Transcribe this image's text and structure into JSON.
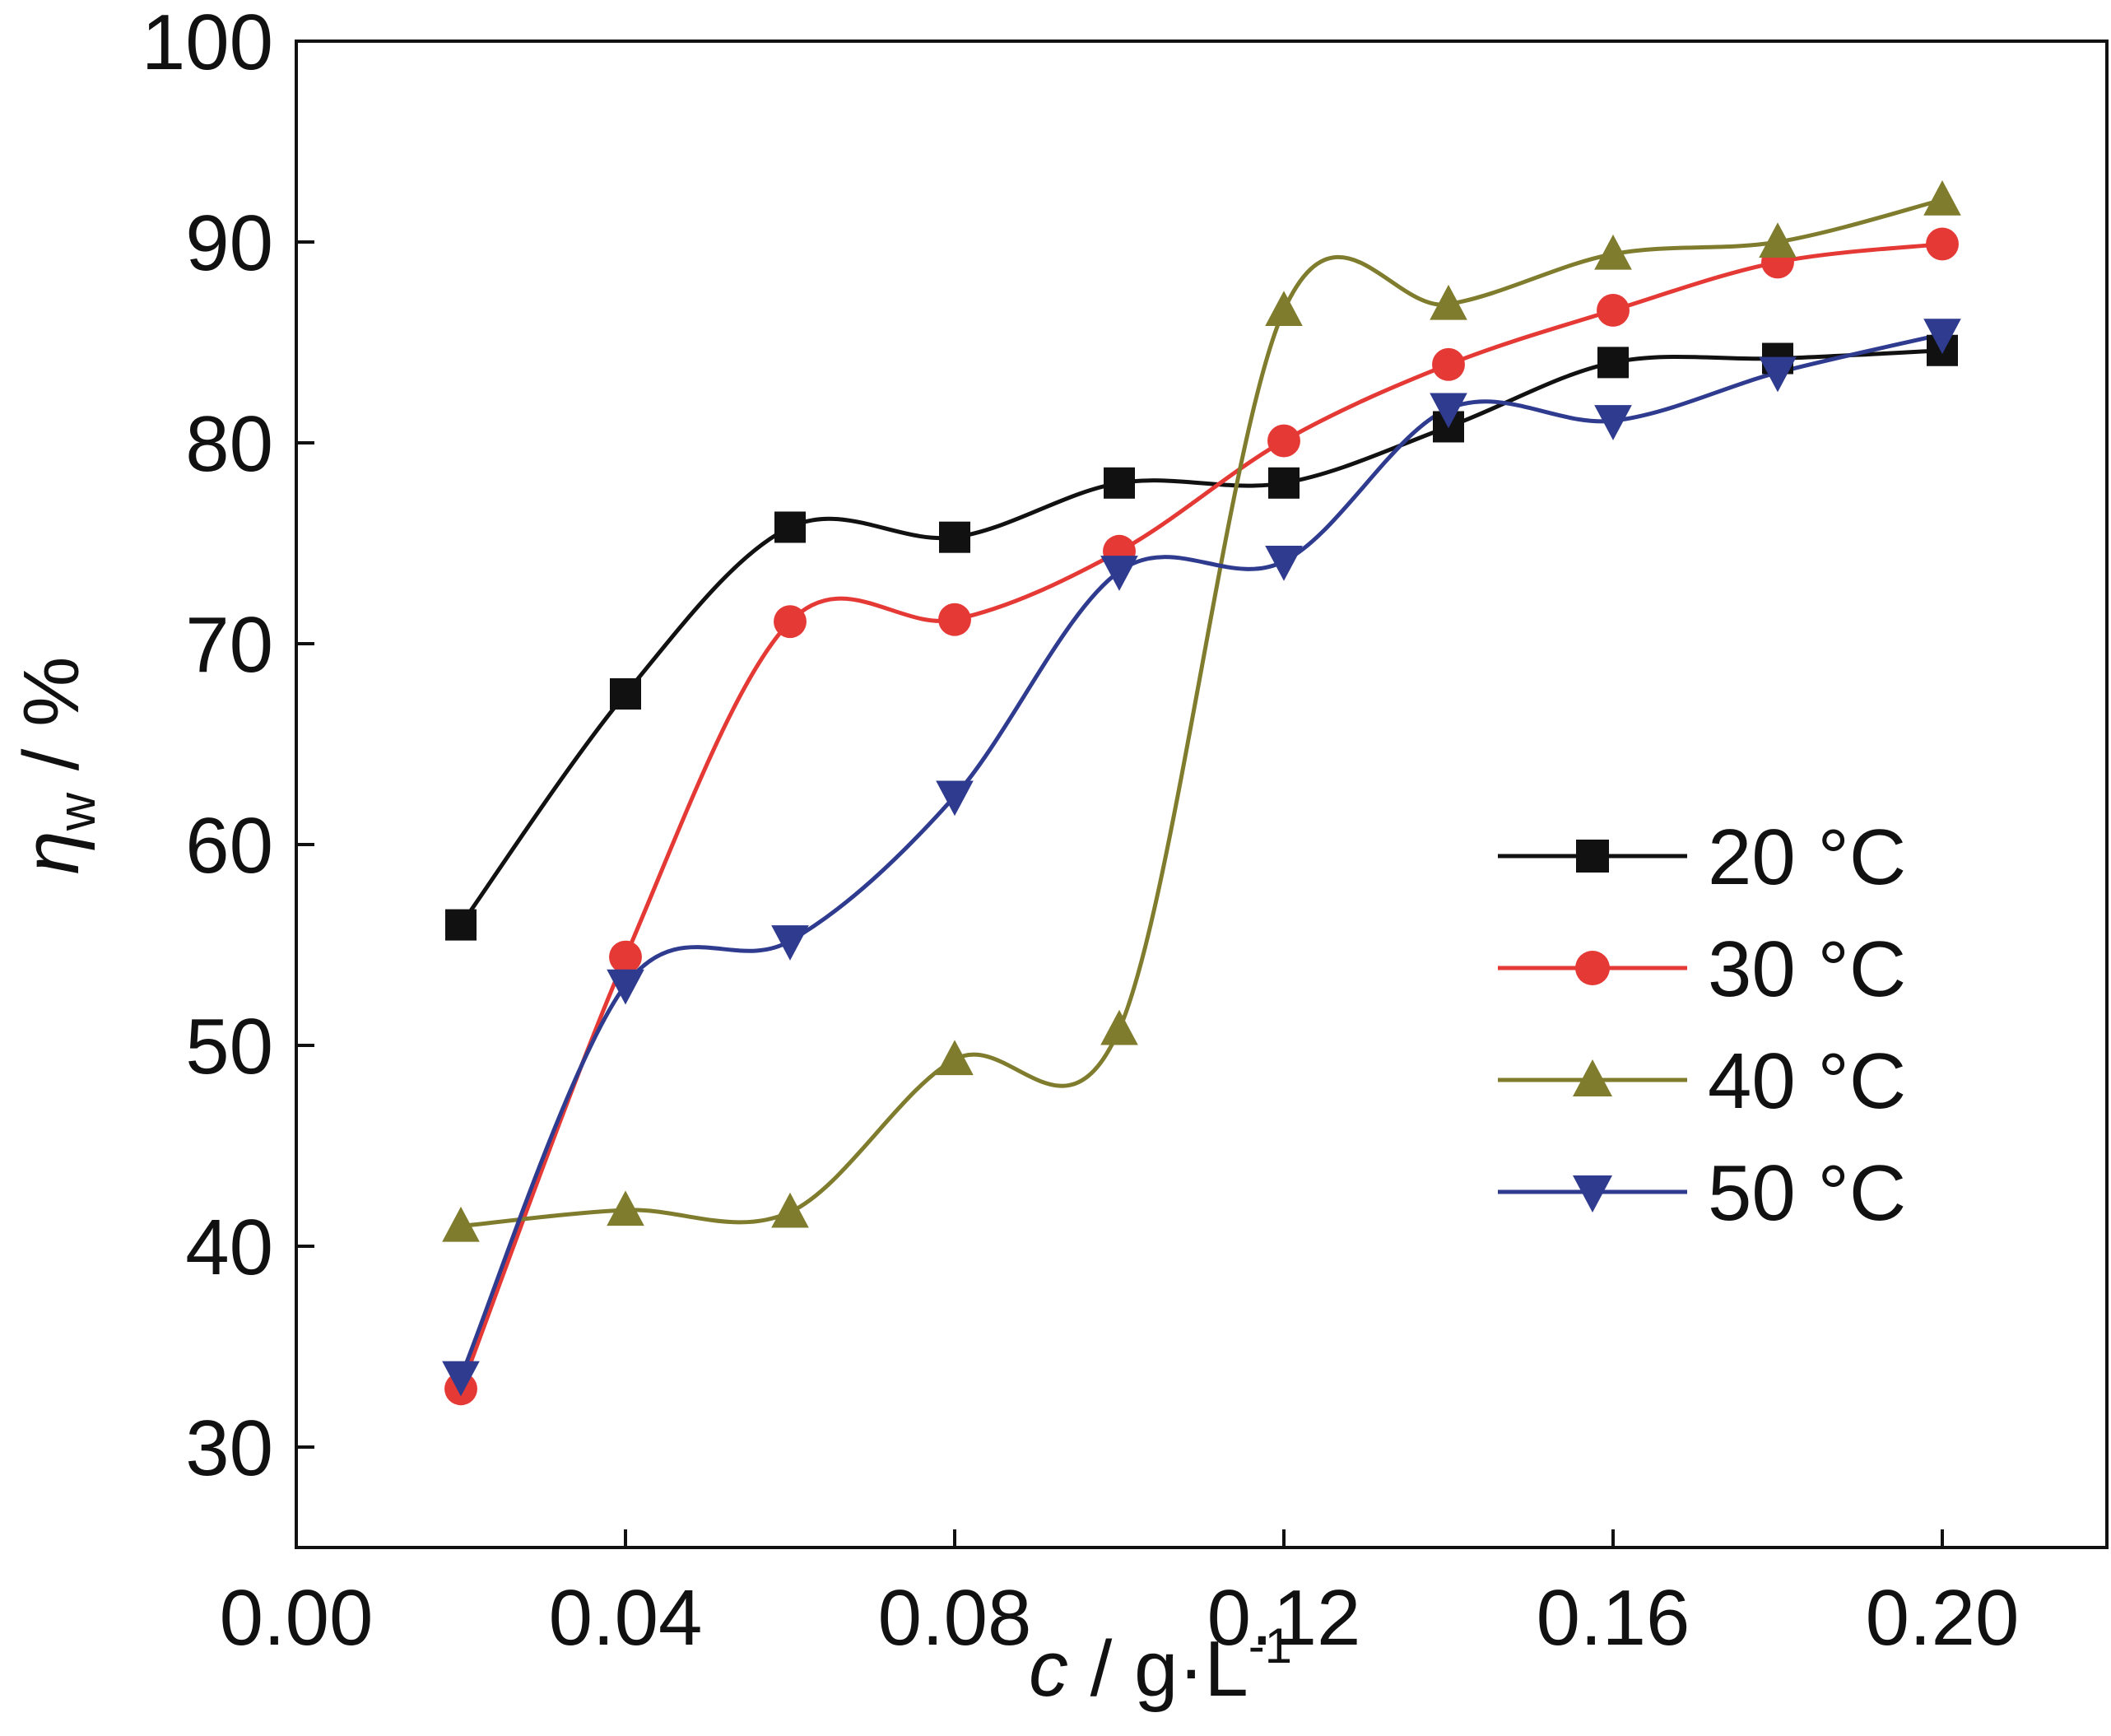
{
  "chart_data": {
    "type": "line",
    "title": "",
    "xlabel": {
      "var": "c",
      "sep": " / g·L",
      "sup": "-1"
    },
    "ylabel": {
      "var": "η",
      "sub": "w",
      "sep": " / %"
    },
    "xlim": [
      0.0,
      0.22
    ],
    "ylim": [
      25,
      100
    ],
    "x_ticks": [
      0.0,
      0.04,
      0.08,
      0.12,
      0.16,
      0.2
    ],
    "x_tick_labels": [
      "0.00",
      "0.04",
      "0.08",
      "0.12",
      "0.16",
      "0.20"
    ],
    "y_ticks": [
      30,
      40,
      50,
      60,
      70,
      80,
      90,
      100
    ],
    "y_tick_labels": [
      "30",
      "40",
      "50",
      "60",
      "70",
      "80",
      "90",
      "100"
    ],
    "grid": false,
    "legend_position": "right",
    "x": [
      0.02,
      0.04,
      0.06,
      0.08,
      0.1,
      0.12,
      0.14,
      0.16,
      0.18,
      0.2
    ],
    "series": [
      {
        "name": "20 °C",
        "marker": "square",
        "color": "#111111",
        "values": [
          56.0,
          67.5,
          75.8,
          75.3,
          78.0,
          78.0,
          80.8,
          84.0,
          84.2,
          84.6
        ]
      },
      {
        "name": "30 °C",
        "marker": "circle",
        "color": "#e53935",
        "values": [
          32.9,
          54.4,
          71.1,
          71.2,
          74.6,
          80.1,
          83.9,
          86.6,
          89.0,
          89.9
        ]
      },
      {
        "name": "40 °C",
        "marker": "triangle-up",
        "color": "#7f7c2e",
        "values": [
          41.0,
          41.8,
          41.7,
          49.3,
          50.8,
          86.6,
          86.9,
          89.4,
          90.0,
          92.1
        ]
      },
      {
        "name": "50 °C",
        "marker": "triangle-down",
        "color": "#2e3b8f",
        "values": [
          33.5,
          53.0,
          55.2,
          62.4,
          73.6,
          74.1,
          81.7,
          81.1,
          83.5,
          85.4
        ]
      }
    ]
  }
}
